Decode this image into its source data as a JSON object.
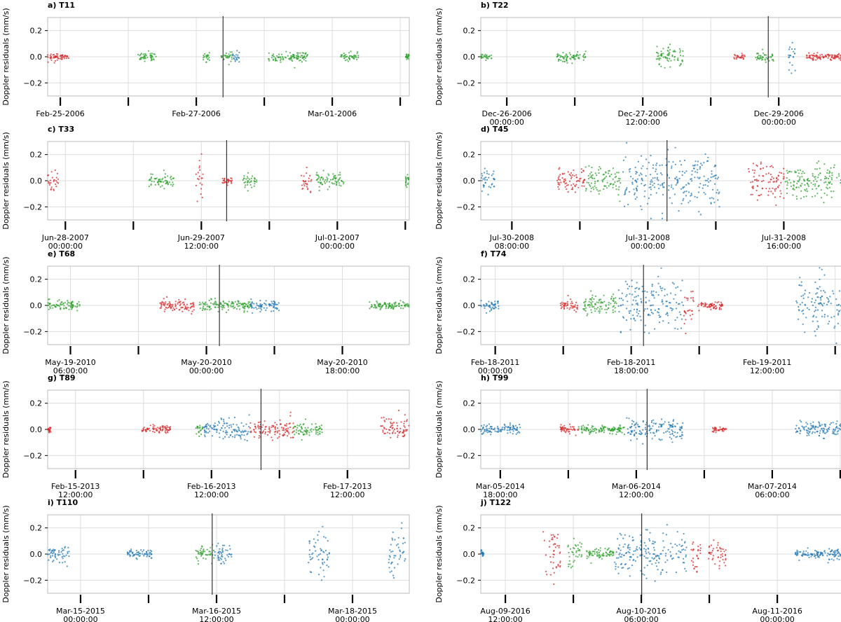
{
  "chart_data": [
    {
      "type": "scatter",
      "title": "a) T11",
      "ylabel": "Doppler residuals (mm/s)",
      "ylim": [
        -0.3,
        0.3
      ],
      "yticks": [
        "0.2",
        "0.0",
        "−0.2"
      ],
      "grid": true,
      "xticks": [
        {
          "l1": "Feb-25-2006",
          "l2": ""
        },
        {
          "l1": "Feb-27-2006",
          "l2": ""
        },
        {
          "l1": "Mar-01-2006",
          "l2": ""
        }
      ],
      "clusters": [
        {
          "c": "red",
          "x0": 0.0,
          "x1": 0.06,
          "s": 0.015
        },
        {
          "c": "green",
          "x0": 0.25,
          "x1": 0.3,
          "s": 0.015
        },
        {
          "c": "green",
          "x0": 0.43,
          "x1": 0.45,
          "s": 0.02
        },
        {
          "c": "green",
          "x0": 0.48,
          "x1": 0.51,
          "s": 0.015
        },
        {
          "c": "blue",
          "x0": 0.51,
          "x1": 0.53,
          "s": 0.02
        },
        {
          "c": "green",
          "x0": 0.61,
          "x1": 0.72,
          "s": 0.02
        },
        {
          "c": "green",
          "x0": 0.81,
          "x1": 0.86,
          "s": 0.015
        },
        {
          "c": "green",
          "x0": 0.99,
          "x1": 1.0,
          "s": 0.01
        }
      ],
      "vline": 0.485
    },
    {
      "type": "scatter",
      "title": "b) T22",
      "ylabel": "Doppler residuals (mm/s)",
      "ylim": [
        -0.3,
        0.3
      ],
      "yticks": [
        "0.2",
        "0.0",
        "−0.2"
      ],
      "grid": true,
      "xticks": [
        {
          "l1": "Dec-26-2006",
          "l2": "00:00:00"
        },
        {
          "l1": "Dec-27-2006",
          "l2": "12:00:00"
        },
        {
          "l1": "Dec-29-2006",
          "l2": "00:00:00"
        }
      ],
      "clusters": [
        {
          "c": "green",
          "x0": 0.0,
          "x1": 0.03,
          "s": 0.01
        },
        {
          "c": "green",
          "x0": 0.21,
          "x1": 0.29,
          "s": 0.02
        },
        {
          "c": "green",
          "x0": 0.48,
          "x1": 0.56,
          "s": 0.04
        },
        {
          "c": "red",
          "x0": 0.7,
          "x1": 0.73,
          "s": 0.01
        },
        {
          "c": "green",
          "x0": 0.76,
          "x1": 0.81,
          "s": 0.02
        },
        {
          "c": "blue",
          "x0": 0.85,
          "x1": 0.87,
          "s": 0.05
        },
        {
          "c": "red",
          "x0": 0.9,
          "x1": 1.0,
          "s": 0.015
        }
      ],
      "vline": 0.795
    },
    {
      "type": "scatter",
      "title": "c) T33",
      "ylabel": "Doppler residuals (mm/s)",
      "ylim": [
        -0.3,
        0.3
      ],
      "yticks": [
        "0.2",
        "0.0",
        "−0.2"
      ],
      "grid": true,
      "xticks": [
        {
          "l1": "Jun-28-2007",
          "l2": "00:00:00"
        },
        {
          "l1": "Jun-29-2007",
          "l2": "12:00:00"
        },
        {
          "l1": "Jul-01-2007",
          "l2": "00:00:00"
        }
      ],
      "clusters": [
        {
          "c": "red",
          "x0": 0.0,
          "x1": 0.03,
          "s": 0.04
        },
        {
          "c": "green",
          "x0": 0.28,
          "x1": 0.35,
          "s": 0.025
        },
        {
          "c": "red",
          "x0": 0.41,
          "x1": 0.43,
          "s": 0.1
        },
        {
          "c": "red",
          "x0": 0.48,
          "x1": 0.51,
          "s": 0.015
        },
        {
          "c": "green",
          "x0": 0.54,
          "x1": 0.58,
          "s": 0.02
        },
        {
          "c": "red",
          "x0": 0.7,
          "x1": 0.73,
          "s": 0.035
        },
        {
          "c": "green",
          "x0": 0.74,
          "x1": 0.82,
          "s": 0.025
        },
        {
          "c": "green",
          "x0": 0.99,
          "x1": 1.0,
          "s": 0.03
        }
      ],
      "vline": 0.495
    },
    {
      "type": "scatter",
      "title": "d) T45",
      "ylabel": "Doppler residuals (mm/s)",
      "ylim": [
        -0.3,
        0.3
      ],
      "yticks": [
        "0.2",
        "0.0",
        "−0.2"
      ],
      "grid": true,
      "xticks": [
        {
          "l1": "Jul-30-2008",
          "l2": "08:00:00"
        },
        {
          "l1": "Jul-31-2008",
          "l2": "00:00:00"
        },
        {
          "l1": "Jul-31-2008",
          "l2": "16:00:00"
        }
      ],
      "clusters": [
        {
          "c": "blue",
          "x0": 0.0,
          "x1": 0.04,
          "s": 0.05
        },
        {
          "c": "red",
          "x0": 0.21,
          "x1": 0.29,
          "s": 0.04
        },
        {
          "c": "green",
          "x0": 0.29,
          "x1": 0.39,
          "s": 0.06
        },
        {
          "c": "blue",
          "x0": 0.39,
          "x1": 0.66,
          "s": 0.11
        },
        {
          "c": "red",
          "x0": 0.74,
          "x1": 0.84,
          "s": 0.07
        },
        {
          "c": "green",
          "x0": 0.84,
          "x1": 1.0,
          "s": 0.06
        }
      ],
      "vline": 0.515
    },
    {
      "type": "scatter",
      "title": "e) T68",
      "ylabel": "Doppler residuals (mm/s)",
      "ylim": [
        -0.3,
        0.3
      ],
      "yticks": [
        "0.2",
        "0.0",
        "−0.2"
      ],
      "grid": true,
      "xticks": [
        {
          "l1": "May-19-2010",
          "l2": "06:00:00"
        },
        {
          "l1": "May-20-2010",
          "l2": "00:00:00"
        },
        {
          "l1": "May-20-2010",
          "l2": "18:00:00"
        }
      ],
      "clusters": [
        {
          "c": "red",
          "x0": 0.31,
          "x1": 0.41,
          "s": 0.02
        },
        {
          "c": "green",
          "x0": 0.0,
          "x1": 0.09,
          "s": 0.02
        },
        {
          "c": "green",
          "x0": 0.42,
          "x1": 0.56,
          "s": 0.02
        },
        {
          "c": "blue",
          "x0": 0.56,
          "x1": 0.64,
          "s": 0.02
        },
        {
          "c": "green",
          "x0": 0.89,
          "x1": 1.0,
          "s": 0.015
        }
      ],
      "vline": 0.475
    },
    {
      "type": "scatter",
      "title": "f) T74",
      "ylabel": "Doppler residuals (mm/s)",
      "ylim": [
        -0.3,
        0.3
      ],
      "yticks": [
        "0.2",
        "0.0",
        "−0.2"
      ],
      "grid": true,
      "xticks": [
        {
          "l1": "Feb-18-2011",
          "l2": "00:00:00"
        },
        {
          "l1": "Feb-18-2011",
          "l2": "18:00:00"
        },
        {
          "l1": "Feb-19-2011",
          "l2": "12:00:00"
        }
      ],
      "clusters": [
        {
          "c": "blue",
          "x0": 0.0,
          "x1": 0.05,
          "s": 0.02
        },
        {
          "c": "red",
          "x0": 0.22,
          "x1": 0.27,
          "s": 0.02
        },
        {
          "c": "green",
          "x0": 0.28,
          "x1": 0.38,
          "s": 0.04
        },
        {
          "c": "blue",
          "x0": 0.38,
          "x1": 0.56,
          "s": 0.1
        },
        {
          "c": "red",
          "x0": 0.56,
          "x1": 0.59,
          "s": 0.12
        },
        {
          "c": "red",
          "x0": 0.6,
          "x1": 0.67,
          "s": 0.015
        },
        {
          "c": "blue",
          "x0": 0.87,
          "x1": 1.0,
          "s": 0.1
        }
      ],
      "vline": 0.45
    },
    {
      "type": "scatter",
      "title": "g) T89",
      "ylabel": "Doppler residuals (mm/s)",
      "ylim": [
        -0.3,
        0.3
      ],
      "yticks": [
        "0.2",
        "0.0",
        "−0.2"
      ],
      "grid": true,
      "xticks": [
        {
          "l1": "Feb-15-2013",
          "l2": "12:00:00"
        },
        {
          "l1": "Feb-16-2013",
          "l2": "12:00:00"
        },
        {
          "l1": "Feb-17-2013",
          "l2": "12:00:00"
        }
      ],
      "clusters": [
        {
          "c": "red",
          "x0": 0.0,
          "x1": 0.01,
          "s": 0.01
        },
        {
          "c": "red",
          "x0": 0.26,
          "x1": 0.34,
          "s": 0.015
        },
        {
          "c": "green",
          "x0": 0.41,
          "x1": 0.43,
          "s": 0.02
        },
        {
          "c": "blue",
          "x0": 0.43,
          "x1": 0.56,
          "s": 0.04
        },
        {
          "c": "red",
          "x0": 0.56,
          "x1": 0.68,
          "s": 0.04
        },
        {
          "c": "green",
          "x0": 0.68,
          "x1": 0.76,
          "s": 0.025
        },
        {
          "c": "red",
          "x0": 0.92,
          "x1": 1.0,
          "s": 0.04
        }
      ],
      "vline": 0.59
    },
    {
      "type": "scatter",
      "title": "h) T99",
      "ylabel": "Doppler residuals (mm/s)",
      "ylim": [
        -0.3,
        0.3
      ],
      "yticks": [
        "0.2",
        "0.0",
        "−0.2"
      ],
      "grid": true,
      "xticks": [
        {
          "l1": "Mar-05-2014",
          "l2": "18:00:00"
        },
        {
          "l1": "Mar-06-2014",
          "l2": "12:00:00"
        },
        {
          "l1": "Mar-07-2014",
          "l2": "06:00:00"
        }
      ],
      "clusters": [
        {
          "c": "blue",
          "x0": 0.0,
          "x1": 0.11,
          "s": 0.02
        },
        {
          "c": "red",
          "x0": 0.22,
          "x1": 0.27,
          "s": 0.015
        },
        {
          "c": "green",
          "x0": 0.27,
          "x1": 0.4,
          "s": 0.015
        },
        {
          "c": "blue",
          "x0": 0.4,
          "x1": 0.56,
          "s": 0.04
        },
        {
          "c": "red",
          "x0": 0.64,
          "x1": 0.68,
          "s": 0.01
        },
        {
          "c": "blue",
          "x0": 0.87,
          "x1": 1.0,
          "s": 0.03
        }
      ],
      "vline": 0.46
    },
    {
      "type": "scatter",
      "title": "i) T110",
      "ylabel": "Doppler residuals (mm/s)",
      "ylim": [
        -0.3,
        0.3
      ],
      "yticks": [
        "0.2",
        "0.0",
        "−0.2"
      ],
      "grid": true,
      "xticks": [
        {
          "l1": "Mar-15-2015",
          "l2": "00:00:00"
        },
        {
          "l1": "Mar-16-2015",
          "l2": "12:00:00"
        },
        {
          "l1": "Mar-18-2015",
          "l2": "00:00:00"
        }
      ],
      "clusters": [
        {
          "c": "blue",
          "x0": 0.0,
          "x1": 0.06,
          "s": 0.03
        },
        {
          "c": "blue",
          "x0": 0.22,
          "x1": 0.29,
          "s": 0.015
        },
        {
          "c": "green",
          "x0": 0.41,
          "x1": 0.46,
          "s": 0.03
        },
        {
          "c": "blue",
          "x0": 0.46,
          "x1": 0.51,
          "s": 0.04
        },
        {
          "c": "blue",
          "x0": 0.72,
          "x1": 0.78,
          "s": 0.11
        },
        {
          "c": "blue",
          "x0": 0.94,
          "x1": 0.99,
          "s": 0.08
        }
      ],
      "vline": 0.455
    },
    {
      "type": "scatter",
      "title": "j) T122",
      "ylabel": "Doppler residuals (mm/s)",
      "ylim": [
        -0.3,
        0.3
      ],
      "yticks": [
        "0.2",
        "0.0",
        "−0.2"
      ],
      "grid": true,
      "xticks": [
        {
          "l1": "Aug-09-2016",
          "l2": "12:00:00"
        },
        {
          "l1": "Aug-10-2016",
          "l2": "06:00:00"
        },
        {
          "l1": "Aug-11-2016",
          "l2": "00:00:00"
        }
      ],
      "clusters": [
        {
          "c": "blue",
          "x0": 0.0,
          "x1": 0.01,
          "s": 0.015
        },
        {
          "c": "red",
          "x0": 0.17,
          "x1": 0.22,
          "s": 0.1
        },
        {
          "c": "green",
          "x0": 0.24,
          "x1": 0.28,
          "s": 0.06
        },
        {
          "c": "green",
          "x0": 0.29,
          "x1": 0.37,
          "s": 0.02
        },
        {
          "c": "blue",
          "x0": 0.37,
          "x1": 0.57,
          "s": 0.08
        },
        {
          "c": "red",
          "x0": 0.58,
          "x1": 0.61,
          "s": 0.06
        },
        {
          "c": "red",
          "x0": 0.63,
          "x1": 0.68,
          "s": 0.04
        },
        {
          "c": "blue",
          "x0": 0.87,
          "x1": 1.0,
          "s": 0.02
        }
      ],
      "vline": 0.445
    }
  ],
  "colors": {
    "red": "#d62728",
    "green": "#2ca02c",
    "blue": "#1f77b4",
    "grid": "#dddddd",
    "axis": "#bbbbbb",
    "vline": "#333333"
  }
}
